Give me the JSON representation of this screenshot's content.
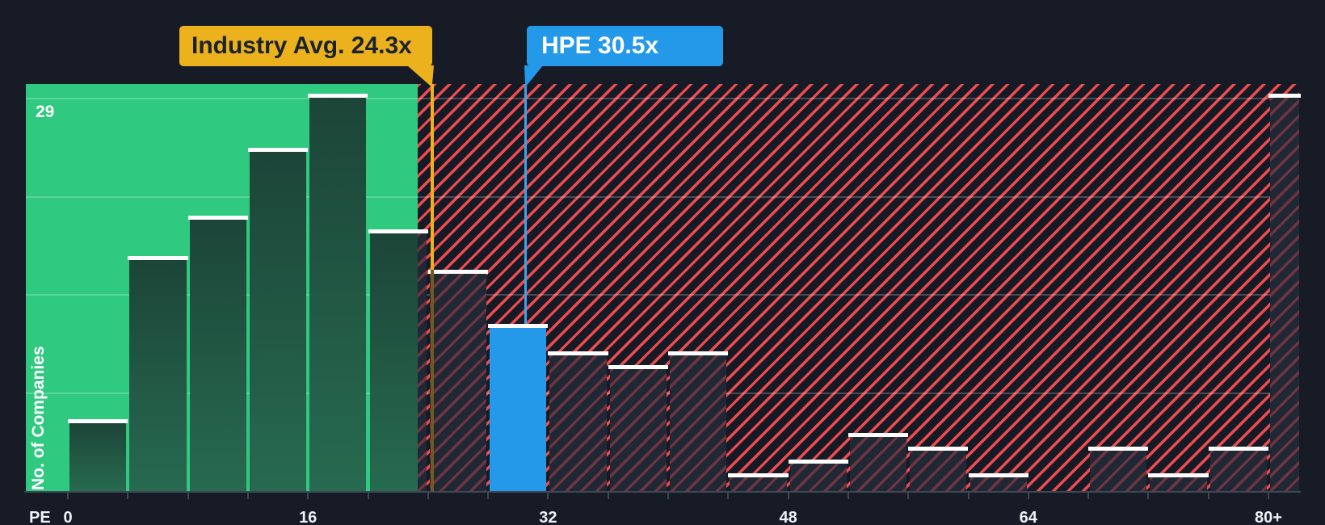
{
  "callouts": {
    "industry": {
      "label": "Industry Avg. 24.3x",
      "value": 24.3
    },
    "company": {
      "label": "HPE 30.5x",
      "value": 30.5
    }
  },
  "y_axis": {
    "max_label": "29",
    "title": "No. of Companies"
  },
  "x_axis": {
    "prefix": "PE",
    "tick_labels": [
      "0",
      "16",
      "32",
      "48",
      "64",
      "80+"
    ],
    "tick_values": [
      0,
      16,
      32,
      48,
      64,
      80
    ]
  },
  "chart_data": {
    "type": "bar",
    "ylabel": "No. of Companies",
    "ylim": [
      0,
      29
    ],
    "y_gridline_values": [
      29,
      21.75,
      14.5,
      7.25
    ],
    "x_axis_prefix": "PE",
    "x_tick_labels": [
      "0",
      "16",
      "32",
      "48",
      "64",
      "80+"
    ],
    "x_tick_values": [
      0,
      16,
      32,
      48,
      64,
      80
    ],
    "bin_width_pe": 4,
    "industry_avg": {
      "label": "Industry Avg. 24.3x",
      "value": 24.3
    },
    "company": {
      "name": "HPE",
      "label": "HPE 30.5x",
      "value": 30.5,
      "highlight_bin": "28-32"
    },
    "bins": [
      {
        "range": "0-4",
        "count": 5
      },
      {
        "range": "4-8",
        "count": 17
      },
      {
        "range": "8-12",
        "count": 20
      },
      {
        "range": "12-16",
        "count": 25
      },
      {
        "range": "16-20",
        "count": 29
      },
      {
        "range": "20-24",
        "count": 19
      },
      {
        "range": "24-28",
        "count": 16
      },
      {
        "range": "28-32",
        "count": 12,
        "highlight": "HPE"
      },
      {
        "range": "32-36",
        "count": 10
      },
      {
        "range": "36-40",
        "count": 9
      },
      {
        "range": "40-44",
        "count": 10
      },
      {
        "range": "44-48",
        "count": 1
      },
      {
        "range": "48-52",
        "count": 2
      },
      {
        "range": "52-56",
        "count": 4
      },
      {
        "range": "56-60",
        "count": 3
      },
      {
        "range": "60-64",
        "count": 1
      },
      {
        "range": "64-68",
        "count": 0
      },
      {
        "range": "68-72",
        "count": 3
      },
      {
        "range": "72-76",
        "count": 1
      },
      {
        "range": "76-80",
        "count": 3
      },
      {
        "range": "80+",
        "count": 29
      }
    ]
  },
  "colors": {
    "background": "#161b25",
    "green_zone": "#2fc97f",
    "hatch_stripe": "#ee4b51",
    "blue": "#2499ea",
    "blue_line": "#3aa3ef",
    "yellow": "#ecb21d",
    "yellow_line_dim": "#6f5b22",
    "marker": "#ffffff",
    "axis": "#3f4754"
  }
}
